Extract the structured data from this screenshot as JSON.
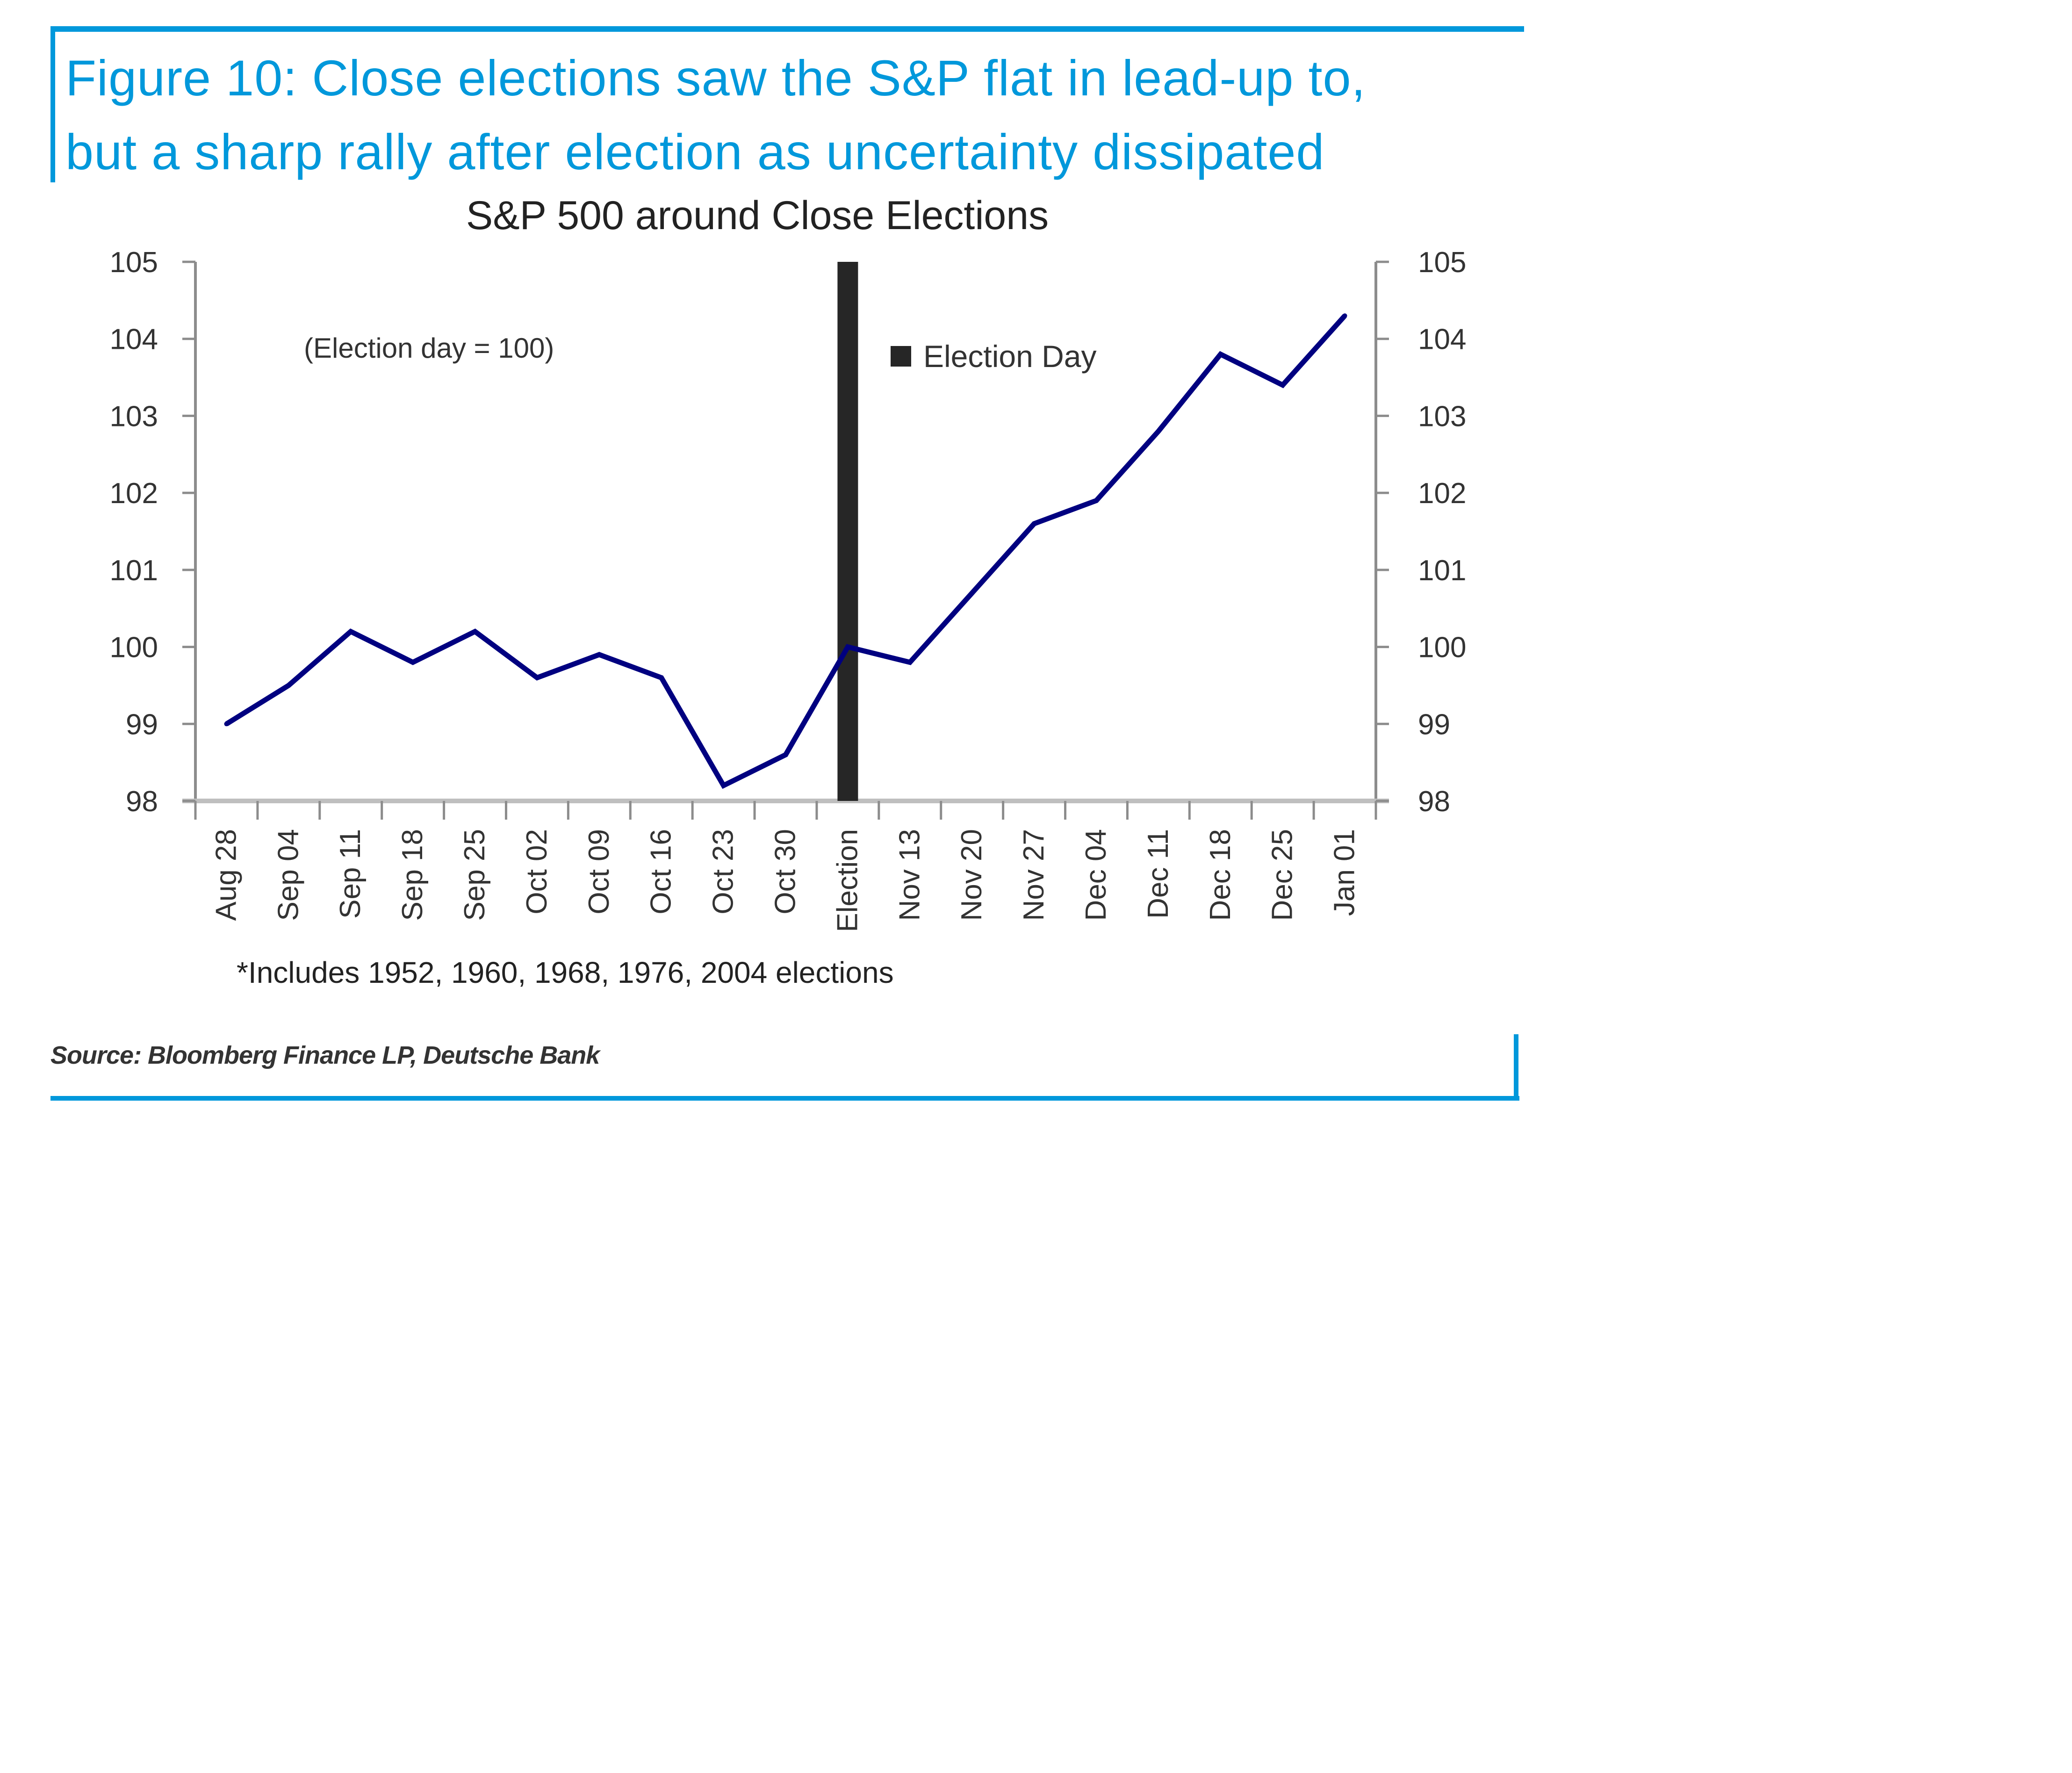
{
  "figure": {
    "title_line1": "Figure 10: Close elections saw the S&P flat in lead-up to,",
    "title_line2": "but a sharp rally after election as uncertainty dissipated",
    "source": "Source: Bloomberg Finance LP, Deutsche Bank",
    "accent_color": "#0098db"
  },
  "chart_data": {
    "type": "line",
    "title": "S&P 500 around Close Elections",
    "annotation": "(Election day = 100)",
    "footnote": "*Includes 1952, 1960, 1968, 1976, 2004 elections",
    "xlabel": "",
    "ylabel": "",
    "ylim": [
      98,
      105
    ],
    "yticks": [
      98,
      99,
      100,
      101,
      102,
      103,
      104,
      105
    ],
    "y2ticks": [
      98,
      99,
      100,
      101,
      102,
      103,
      104,
      105
    ],
    "grid": false,
    "legend": {
      "position": "top-center",
      "entries": [
        {
          "name": "Election Day",
          "color": "#262626",
          "marker": "square"
        }
      ]
    },
    "categories": [
      "Aug 28",
      "Sep 04",
      "Sep 11",
      "Sep 18",
      "Sep 25",
      "Oct 02",
      "Oct 09",
      "Oct 16",
      "Oct 23",
      "Oct 30",
      "Election",
      "Nov 13",
      "Nov 20",
      "Nov 27",
      "Dec 04",
      "Dec 11",
      "Dec 18",
      "Dec 25",
      "Jan 01"
    ],
    "series": [
      {
        "name": "S&P 500 (Election day = 100)",
        "color": "#000080",
        "values": [
          99.0,
          99.5,
          100.2,
          99.8,
          100.2,
          99.6,
          99.9,
          99.6,
          98.2,
          98.6,
          100.0,
          99.8,
          100.7,
          101.6,
          101.9,
          102.8,
          103.8,
          103.4,
          104.3
        ]
      }
    ],
    "highlight_bar": {
      "name": "Election Day",
      "category": "Election",
      "color": "#262626",
      "value_range": [
        98,
        105
      ]
    }
  }
}
